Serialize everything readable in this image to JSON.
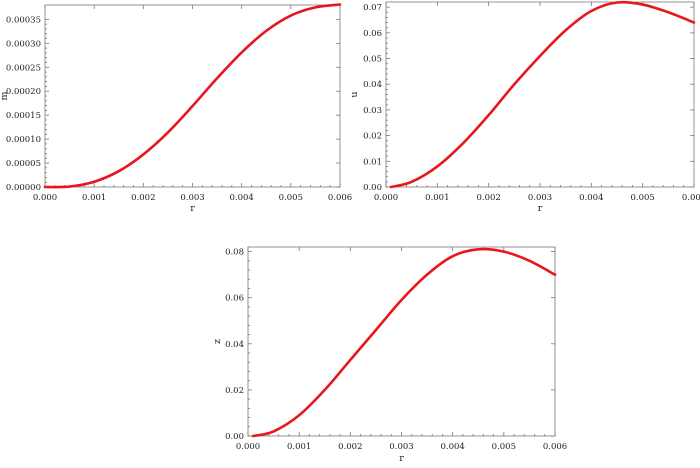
{
  "chart_data": [
    {
      "type": "line",
      "xlabel": "r",
      "ylabel": "m",
      "xlim": [
        0,
        0.006
      ],
      "ylim": [
        0,
        0.00038
      ],
      "xticks": [
        "0.000",
        "0.001",
        "0.002",
        "0.003",
        "0.004",
        "0.005",
        "0.006"
      ],
      "xtick_values": [
        0,
        0.001,
        0.002,
        0.003,
        0.004,
        0.005,
        0.006
      ],
      "yticks": [
        "0.00000",
        "0.00005",
        "0.00010",
        "0.00015",
        "0.00020",
        "0.00025",
        "0.00030",
        "0.00035"
      ],
      "ytick_values": [
        0,
        5e-05,
        0.0001,
        0.00015,
        0.0002,
        0.00025,
        0.0003,
        0.00035
      ],
      "grid": false,
      "series": [
        {
          "color": "#e8161b",
          "x": [
            0,
            0.0005,
            0.001,
            0.0015,
            0.002,
            0.0025,
            0.003,
            0.0035,
            0.004,
            0.0045,
            0.005,
            0.0055,
            0.006
          ],
          "y": [
            0,
            1e-06,
            1.1e-05,
            3.3e-05,
            6.8e-05,
            0.000114,
            0.000169,
            0.000227,
            0.000281,
            0.000326,
            0.000358,
            0.000375,
            0.000381
          ]
        }
      ]
    },
    {
      "type": "line",
      "xlabel": "r",
      "ylabel": "u",
      "xlim": [
        0,
        0.006
      ],
      "ylim": [
        0,
        0.072
      ],
      "xticks": [
        "0.000",
        "0.001",
        "0.002",
        "0.003",
        "0.004",
        "0.005",
        "0.006"
      ],
      "xtick_values": [
        0,
        0.001,
        0.002,
        0.003,
        0.004,
        0.005,
        0.006
      ],
      "yticks": [
        "0.00",
        "0.01",
        "0.02",
        "0.03",
        "0.04",
        "0.05",
        "0.06",
        "0.07"
      ],
      "ytick_values": [
        0,
        0.01,
        0.02,
        0.03,
        0.04,
        0.05,
        0.06,
        0.07
      ],
      "grid": false,
      "series": [
        {
          "color": "#e8161b",
          "x": [
            0.0001,
            0.0005,
            0.001,
            0.0015,
            0.002,
            0.0025,
            0.003,
            0.0035,
            0.004,
            0.0045,
            0.005,
            0.0055,
            0.006
          ],
          "y": [
            0,
            0.002,
            0.008,
            0.017,
            0.028,
            0.04,
            0.051,
            0.061,
            0.0685,
            0.0718,
            0.071,
            0.068,
            0.064
          ]
        }
      ]
    },
    {
      "type": "line",
      "xlabel": "r",
      "ylabel": "z",
      "xlim": [
        0,
        0.006
      ],
      "ylim": [
        0,
        0.082
      ],
      "xticks": [
        "0.000",
        "0.001",
        "0.002",
        "0.003",
        "0.004",
        "0.005",
        "0.006"
      ],
      "xtick_values": [
        0,
        0.001,
        0.002,
        0.003,
        0.004,
        0.005,
        0.006
      ],
      "yticks": [
        "0.00",
        "0.02",
        "0.04",
        "0.06",
        "0.08"
      ],
      "ytick_values": [
        0,
        0.02,
        0.04,
        0.06,
        0.08
      ],
      "grid": false,
      "series": [
        {
          "color": "#e8161b",
          "x": [
            0.0001,
            0.0005,
            0.001,
            0.0015,
            0.002,
            0.0025,
            0.003,
            0.0035,
            0.004,
            0.0045,
            0.005,
            0.0055,
            0.006
          ],
          "y": [
            0,
            0.002,
            0.009,
            0.02,
            0.033,
            0.046,
            0.059,
            0.07,
            0.078,
            0.081,
            0.08,
            0.076,
            0.07
          ]
        }
      ]
    }
  ]
}
